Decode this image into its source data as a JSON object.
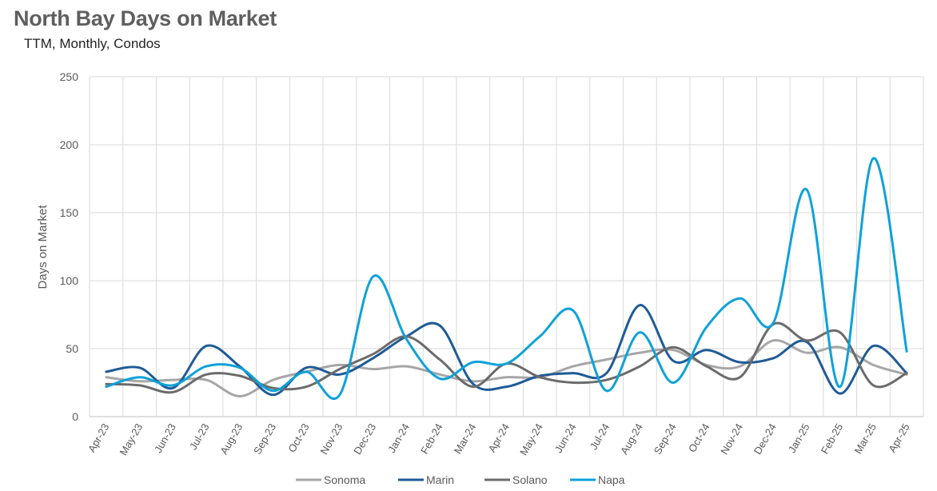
{
  "title": "North Bay Days on Market",
  "subtitle": "TTM, Monthly, Condos",
  "chart_data": {
    "type": "line",
    "title": "North Bay Days on Market",
    "subtitle": "TTM, Monthly, Condos",
    "xlabel": "",
    "ylabel": "Days on Market",
    "ylim": [
      0,
      250
    ],
    "yticks": [
      0,
      50,
      100,
      150,
      200,
      250
    ],
    "grid": true,
    "legend_position": "bottom",
    "categories": [
      "Apr-23",
      "May-23",
      "Jun-23",
      "Jul-23",
      "Aug-23",
      "Sep-23",
      "Oct-23",
      "Nov-23",
      "Dec-23",
      "Jan-24",
      "Feb-24",
      "Mar-24",
      "Apr-24",
      "May-24",
      "Jun-24",
      "Jul-24",
      "Aug-24",
      "Sep-24",
      "Oct-24",
      "Nov-24",
      "Dec-24",
      "Jan-25",
      "Feb-25",
      "Mar-25",
      "Apr-25"
    ],
    "series": [
      {
        "name": "Sonoma",
        "color": "#a6a6a6",
        "values": [
          29,
          26,
          27,
          27,
          15,
          27,
          33,
          38,
          35,
          37,
          31,
          26,
          29,
          29,
          37,
          42,
          47,
          49,
          38,
          37,
          56,
          47,
          51,
          38,
          31
        ]
      },
      {
        "name": "Marin",
        "color": "#1f5b96",
        "values": [
          33,
          36,
          21,
          52,
          37,
          16,
          36,
          31,
          43,
          59,
          67,
          24,
          22,
          30,
          32,
          32,
          82,
          41,
          49,
          40,
          43,
          55,
          17,
          52,
          32
        ]
      },
      {
        "name": "Solano",
        "color": "#6b6b6b",
        "values": [
          24,
          23,
          18,
          31,
          30,
          21,
          22,
          35,
          46,
          59,
          42,
          22,
          39,
          29,
          25,
          27,
          37,
          51,
          37,
          29,
          68,
          56,
          62,
          23,
          32
        ]
      },
      {
        "name": "Napa",
        "color": "#0fa1d8",
        "values": [
          22,
          29,
          23,
          37,
          36,
          19,
          33,
          16,
          103,
          57,
          28,
          40,
          39,
          59,
          78,
          19,
          62,
          25,
          66,
          87,
          69,
          167,
          22,
          190,
          48
        ]
      }
    ]
  }
}
